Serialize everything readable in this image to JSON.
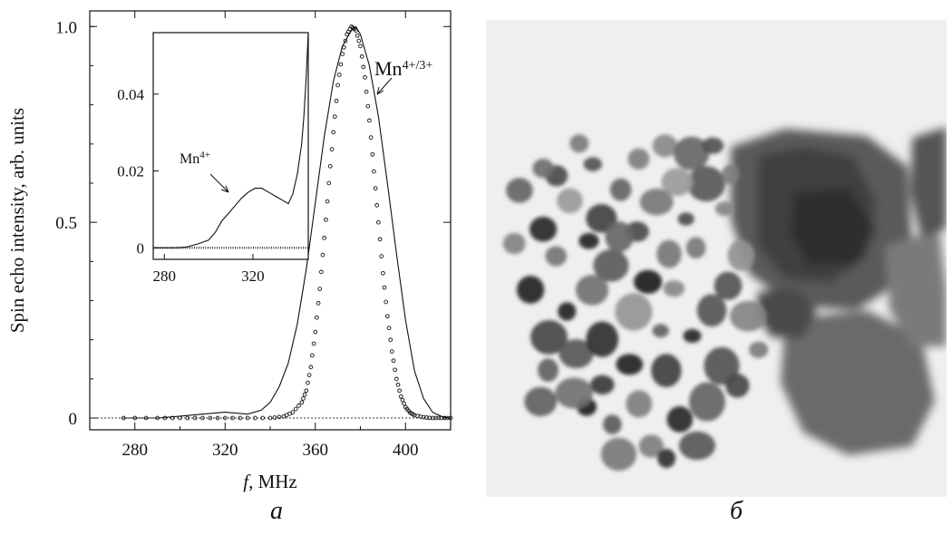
{
  "panels": {
    "a_label": "a",
    "b_label": "б"
  },
  "chart_data": {
    "type": "line",
    "xlabel_italic": "f",
    "xlabel_rest": ", MHz",
    "ylabel": "Spin echo intensity, arb. units",
    "xlim": [
      260,
      420
    ],
    "ylim": [
      -0.03,
      1.04
    ],
    "x_ticks": [
      "280",
      "320",
      "360",
      "400"
    ],
    "x_tick_values": [
      280,
      320,
      360,
      400
    ],
    "y_ticks": [
      "0",
      "0.5",
      "1.0"
    ],
    "y_tick_values": [
      0,
      0.5,
      1.0
    ],
    "baseline": {
      "style": "dotted",
      "y": 0
    },
    "series": [
      {
        "style": "solid-line",
        "x": [
          275,
          290,
          300,
          310,
          320,
          330,
          336,
          340,
          344,
          348,
          352,
          356,
          360,
          364,
          368,
          372,
          376,
          378,
          380,
          384,
          388,
          392,
          396,
          400,
          404,
          408,
          412,
          416,
          420
        ],
        "y": [
          0.0,
          0.0,
          0.005,
          0.01,
          0.015,
          0.01,
          0.02,
          0.04,
          0.08,
          0.14,
          0.24,
          0.38,
          0.55,
          0.72,
          0.86,
          0.95,
          0.99,
          1.0,
          0.98,
          0.9,
          0.77,
          0.6,
          0.42,
          0.25,
          0.12,
          0.05,
          0.015,
          0.004,
          0.0
        ]
      },
      {
        "style": "open-circles",
        "x": [
          275,
          290,
          300,
          310,
          320,
          330,
          340,
          346,
          350,
          354,
          356,
          358,
          360,
          362,
          364,
          366,
          368,
          370,
          372,
          374,
          376,
          378,
          380,
          382,
          384,
          386,
          388,
          390,
          392,
          394,
          396,
          398,
          400,
          402,
          404,
          408,
          412,
          416,
          420
        ],
        "y": [
          0.0,
          0.0,
          0.0,
          0.0,
          0.0,
          0.0,
          0.0,
          0.004,
          0.015,
          0.04,
          0.07,
          0.13,
          0.22,
          0.33,
          0.46,
          0.6,
          0.73,
          0.85,
          0.93,
          0.98,
          1.0,
          0.99,
          0.95,
          0.87,
          0.76,
          0.63,
          0.5,
          0.37,
          0.26,
          0.17,
          0.1,
          0.055,
          0.028,
          0.014,
          0.007,
          0.002,
          0.0,
          0.0,
          0.0
        ]
      }
    ],
    "annotations": [
      {
        "base": "Mn",
        "sup": "4+/3+"
      }
    ],
    "inset": {
      "xlim": [
        275,
        345
      ],
      "ylim": [
        -0.003,
        0.056
      ],
      "x_ticks": [
        "280",
        "320"
      ],
      "x_tick_values": [
        280,
        320
      ],
      "y_ticks": [
        "0",
        "0.02",
        "0.04"
      ],
      "y_tick_values": [
        0,
        0.02,
        0.04
      ],
      "series": [
        {
          "style": "solid-line",
          "x": [
            275,
            280,
            285,
            290,
            295,
            300,
            303,
            306,
            309,
            312,
            315,
            318,
            321,
            324,
            327,
            330,
            333,
            336,
            338,
            340,
            342,
            343,
            344,
            345
          ],
          "y": [
            0.0,
            0.0,
            0.0,
            0.0002,
            0.001,
            0.002,
            0.004,
            0.007,
            0.009,
            0.011,
            0.013,
            0.0145,
            0.0155,
            0.0155,
            0.0145,
            0.0135,
            0.0125,
            0.0115,
            0.014,
            0.019,
            0.027,
            0.034,
            0.044,
            0.056
          ]
        },
        {
          "style": "dots",
          "x": [
            275,
            280,
            285,
            290,
            295,
            300,
            305,
            310,
            315,
            320,
            325,
            330,
            335,
            340,
            345
          ],
          "y": [
            0.0,
            0.0,
            0.0,
            0.0,
            0.0,
            0.0,
            0.0,
            0.0,
            0.0,
            0.0,
            0.0,
            0.0,
            0.0,
            0.0,
            0.0
          ]
        }
      ],
      "annotations": [
        {
          "base": "Mn",
          "sup": "4+"
        }
      ]
    }
  },
  "micrograph": {
    "kind": "tem-image-of-nanoparticle-agglomerates",
    "background_color": "#f0f0f0",
    "particle_color": "#2a2a2a"
  }
}
